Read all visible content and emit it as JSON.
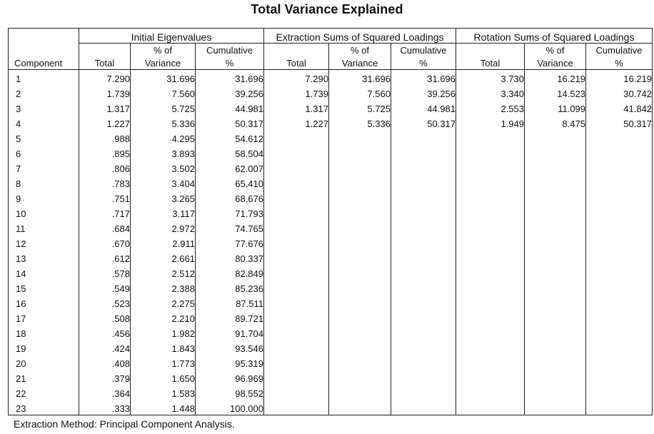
{
  "title": "Total Variance Explained",
  "groups": [
    "Initial Eigenvalues",
    "Extraction Sums of Squared Loadings",
    "Rotation Sums of Squared Loadings"
  ],
  "component_label": "Component",
  "col_top": [
    "",
    "% of",
    "Cumulative"
  ],
  "col_bottom": [
    "Total",
    "Variance",
    "%"
  ],
  "rows": [
    [
      "1",
      "7.290",
      "31.696",
      "31.696",
      "7.290",
      "31.696",
      "31.696",
      "3.730",
      "16.219",
      "16.219"
    ],
    [
      "2",
      "1.739",
      "7.560",
      "39.256",
      "1.739",
      "7.560",
      "39.256",
      "3.340",
      "14.523",
      "30.742"
    ],
    [
      "3",
      "1.317",
      "5.725",
      "44.981",
      "1.317",
      "5.725",
      "44.981",
      "2.553",
      "11.099",
      "41.842"
    ],
    [
      "4",
      "1.227",
      "5.336",
      "50.317",
      "1.227",
      "5.336",
      "50.317",
      "1.949",
      "8.475",
      "50.317"
    ],
    [
      "5",
      ".988",
      "4.295",
      "54.612",
      "",
      "",
      "",
      "",
      "",
      ""
    ],
    [
      "6",
      ".895",
      "3.893",
      "58.504",
      "",
      "",
      "",
      "",
      "",
      ""
    ],
    [
      "7",
      ".806",
      "3.502",
      "62.007",
      "",
      "",
      "",
      "",
      "",
      ""
    ],
    [
      "8",
      ".783",
      "3.404",
      "65.410",
      "",
      "",
      "",
      "",
      "",
      ""
    ],
    [
      "9",
      ".751",
      "3.265",
      "68.676",
      "",
      "",
      "",
      "",
      "",
      ""
    ],
    [
      "10",
      ".717",
      "3.117",
      "71.793",
      "",
      "",
      "",
      "",
      "",
      ""
    ],
    [
      "11",
      ".684",
      "2.972",
      "74.765",
      "",
      "",
      "",
      "",
      "",
      ""
    ],
    [
      "12",
      ".670",
      "2.911",
      "77.676",
      "",
      "",
      "",
      "",
      "",
      ""
    ],
    [
      "13",
      ".612",
      "2.661",
      "80.337",
      "",
      "",
      "",
      "",
      "",
      ""
    ],
    [
      "14",
      ".578",
      "2.512",
      "82.849",
      "",
      "",
      "",
      "",
      "",
      ""
    ],
    [
      "15",
      ".549",
      "2.388",
      "85.236",
      "",
      "",
      "",
      "",
      "",
      ""
    ],
    [
      "16",
      ".523",
      "2.275",
      "87.511",
      "",
      "",
      "",
      "",
      "",
      ""
    ],
    [
      "17",
      ".508",
      "2.210",
      "89.721",
      "",
      "",
      "",
      "",
      "",
      ""
    ],
    [
      "18",
      ".456",
      "1.982",
      "91.704",
      "",
      "",
      "",
      "",
      "",
      ""
    ],
    [
      "19",
      ".424",
      "1.843",
      "93.546",
      "",
      "",
      "",
      "",
      "",
      ""
    ],
    [
      "20",
      ".408",
      "1.773",
      "95.319",
      "",
      "",
      "",
      "",
      "",
      ""
    ],
    [
      "21",
      ".379",
      "1.650",
      "96.969",
      "",
      "",
      "",
      "",
      "",
      ""
    ],
    [
      "22",
      ".364",
      "1.583",
      "98.552",
      "",
      "",
      "",
      "",
      "",
      ""
    ],
    [
      "23",
      ".333",
      "1.448",
      "100.000",
      "",
      "",
      "",
      "",
      "",
      ""
    ]
  ],
  "footnote": "Extraction Method: Principal Component Analysis."
}
